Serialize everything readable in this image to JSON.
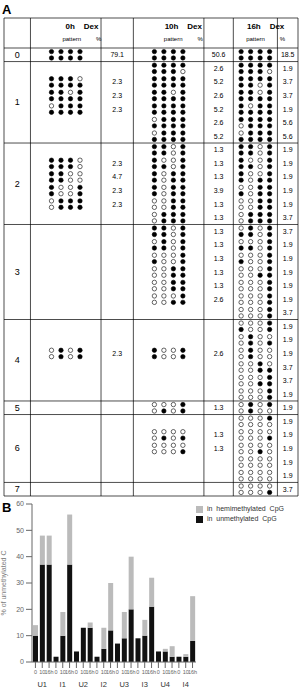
{
  "chart_data": [
    {
      "type": "table",
      "annotations": [
        "A"
      ],
      "columns": [
        {
          "title": "0h    Dex",
          "subtitle": "pattern         %"
        },
        {
          "title": "10h    Dex",
          "subtitle": "pattern         %"
        },
        {
          "title": "16h    Dex",
          "subtitle": "pattern         %"
        }
      ],
      "row_labels": [
        "0",
        "1",
        "2",
        "3",
        "4",
        "5",
        "6",
        "7"
      ],
      "cells": [
        [
          [
            {
              "pattern": [
                "F",
                "F",
                "F",
                "F"
              ],
              "value": 79.1
            }
          ],
          [
            {
              "pattern": [
                "F",
                "F",
                "F",
                "F"
              ],
              "value": 50.6
            }
          ],
          [
            {
              "pattern": [
                "F",
                "F",
                "F",
                "F"
              ],
              "value": 18.5
            }
          ]
        ],
        [
          [
            {
              "pattern": [
                "F",
                "F",
                "F",
                "h"
              ],
              "value": 2.3
            },
            {
              "pattern": [
                "F",
                "F",
                "h",
                "F"
              ],
              "value": 2.3
            },
            {
              "pattern": [
                "h",
                "F",
                "F",
                "F"
              ],
              "value": 2.3
            }
          ],
          [
            {
              "pattern": [
                "F",
                "F",
                "F",
                "H"
              ],
              "value": 2.6
            },
            {
              "pattern": [
                "F",
                "F",
                "F",
                "F"
              ],
              "value": 5.2
            },
            {
              "pattern": [
                "F",
                "F",
                "h",
                "F"
              ],
              "value": 2.6
            },
            {
              "pattern": [
                "F",
                "F",
                "F",
                "F"
              ],
              "value": 5.2
            },
            {
              "pattern": [
                "h",
                "F",
                "F",
                "F"
              ],
              "value": 2.6
            },
            {
              "pattern": [
                "h",
                "F",
                "F",
                "F"
              ],
              "value": 5.2
            }
          ],
          [
            {
              "pattern": [
                "F",
                "F",
                "F",
                "H"
              ],
              "value": 1.9
            },
            {
              "pattern": [
                "F",
                "F",
                "H",
                "F"
              ],
              "value": 3.7
            },
            {
              "pattern": [
                "F",
                "F",
                "h",
                "F"
              ],
              "value": 3.7
            },
            {
              "pattern": [
                "F",
                "h",
                "F",
                "F"
              ],
              "value": 1.9
            },
            {
              "pattern": [
                "H",
                "F",
                "F",
                "F"
              ],
              "value": 5.6
            },
            {
              "pattern": [
                "h",
                "F",
                "F",
                "F"
              ],
              "value": 5.6
            }
          ]
        ],
        [
          [
            {
              "pattern": [
                "F",
                "F",
                "F",
                "U"
              ],
              "value": 2.3
            },
            {
              "pattern": [
                "F",
                "F",
                "U",
                "U"
              ],
              "value": 4.7
            },
            {
              "pattern": [
                "F",
                "U",
                "U",
                "F"
              ],
              "value": 2.3
            },
            {
              "pattern": [
                "U",
                "F",
                "F",
                "F"
              ],
              "value": 2.3
            }
          ],
          [
            {
              "pattern": [
                "F",
                "F",
                "U",
                "F"
              ],
              "value": 1.3
            },
            {
              "pattern": [
                "F",
                "h",
                "U",
                "F"
              ],
              "value": 1.3
            },
            {
              "pattern": [
                "F",
                "U",
                "F",
                "F"
              ],
              "value": 1.3
            },
            {
              "pattern": [
                "F",
                "U",
                "F",
                "F"
              ],
              "value": 3.9
            },
            {
              "pattern": [
                "U",
                "U",
                "F",
                "F"
              ],
              "value": 1.3
            },
            {
              "pattern": [
                "U",
                "F",
                "F",
                "F"
              ],
              "value": 1.3
            }
          ],
          [
            {
              "pattern": [
                "F",
                "F",
                "U",
                "F"
              ],
              "value": 1.9
            },
            {
              "pattern": [
                "F",
                "h",
                "U",
                "F"
              ],
              "value": 1.9
            },
            {
              "pattern": [
                "F",
                "U",
                "h",
                "F"
              ],
              "value": 1.9
            },
            {
              "pattern": [
                "h",
                "U",
                "F",
                "F"
              ],
              "value": 1.9
            },
            {
              "pattern": [
                "U",
                "U",
                "F",
                "F"
              ],
              "value": 1.9
            },
            {
              "pattern": [
                "U",
                "F",
                "F",
                "F"
              ],
              "value": 3.7
            }
          ]
        ],
        [
          [],
          [
            {
              "pattern": [
                "F",
                "F",
                "U",
                "F"
              ],
              "value": 1.3
            },
            {
              "pattern": [
                "h",
                "F",
                "U",
                "F"
              ],
              "value": 1.3
            },
            {
              "pattern": [
                "h",
                "U",
                "U",
                "F"
              ],
              "value": 1.3
            },
            {
              "pattern": [
                "U",
                "U",
                "F",
                "F"
              ],
              "value": 1.3
            },
            {
              "pattern": [
                "U",
                "U",
                "F",
                "F"
              ],
              "value": 1.3
            },
            {
              "pattern": [
                "U",
                "U",
                "h",
                "F"
              ],
              "value": 2.6
            }
          ],
          [
            {
              "pattern": [
                "h",
                "F",
                "U",
                "F"
              ],
              "value": 3.7
            },
            {
              "pattern": [
                "h",
                "h",
                "U",
                "F"
              ],
              "value": 1.9
            },
            {
              "pattern": [
                "h",
                "U",
                "U",
                "F"
              ],
              "value": 1.9
            },
            {
              "pattern": [
                "U",
                "U",
                "h",
                "F"
              ],
              "value": 1.9
            },
            {
              "pattern": [
                "U",
                "U",
                "U",
                "F"
              ],
              "value": 1.9
            },
            {
              "pattern": [
                "U",
                "U",
                "U",
                "F"
              ],
              "value": 1.9
            },
            {
              "pattern": [
                "U",
                "U",
                "U",
                "F"
              ],
              "value": 3.7
            }
          ]
        ],
        [
          [
            {
              "pattern": [
                "U",
                "F",
                "U",
                "F"
              ],
              "value": 2.3
            }
          ],
          [
            {
              "pattern": [
                "F",
                "U",
                "U",
                "F"
              ],
              "value": 2.6
            }
          ],
          [
            {
              "pattern": [
                "h",
                "U",
                "U",
                "F"
              ],
              "value": 1.9
            },
            {
              "pattern": [
                "U",
                "F",
                "U",
                "h"
              ],
              "value": 1.9
            },
            {
              "pattern": [
                "U",
                "F",
                "U",
                "U"
              ],
              "value": 1.9
            },
            {
              "pattern": [
                "U",
                "U",
                "F",
                "h"
              ],
              "value": 3.7
            },
            {
              "pattern": [
                "U",
                "U",
                "h",
                "F"
              ],
              "value": 3.7
            },
            {
              "pattern": [
                "U",
                "U",
                "U",
                "F"
              ],
              "value": 1.9
            }
          ]
        ],
        [
          [],
          [
            {
              "pattern": [
                "U",
                "h",
                "U",
                "F"
              ],
              "value": 1.3
            }
          ],
          [
            {
              "pattern": [
                "U",
                "F",
                "U",
                "H"
              ],
              "value": 1.9
            }
          ]
        ],
        [
          [],
          [
            {
              "pattern": [
                "U",
                "h",
                "U",
                "h"
              ],
              "value": 1.3
            },
            {
              "pattern": [
                "U",
                "U",
                "U",
                "h"
              ],
              "value": 1.3
            }
          ],
          [
            {
              "pattern": [
                "U",
                "U",
                "U",
                "H"
              ],
              "value": 1.9
            },
            {
              "pattern": [
                "U",
                "U",
                "U",
                "h"
              ],
              "value": 1.9
            },
            {
              "pattern": [
                "U",
                "U",
                "h",
                "U"
              ],
              "value": 1.9
            },
            {
              "pattern": [
                "U",
                "U",
                "U",
                "U"
              ],
              "value": 1.9
            },
            {
              "pattern": [
                "U",
                "U",
                "U",
                "U"
              ],
              "value": 1.9
            }
          ]
        ],
        [
          [],
          [],
          [
            {
              "pattern": [
                "U",
                "U",
                "U",
                "h"
              ],
              "value": 3.7
            }
          ]
        ]
      ]
    },
    {
      "type": "bar",
      "stacked": true,
      "legend": "upper right",
      "annotations": [
        "B"
      ],
      "y_label": "% of unmethylated C",
      "ylim": [
        0,
        60
      ],
      "yticks": [
        0,
        10,
        20,
        30,
        40,
        50,
        60
      ],
      "groups": [
        "U1",
        "I1",
        "U2",
        "I2",
        "U3",
        "I3",
        "U4",
        "I4"
      ],
      "categories": [
        "0",
        "10",
        "16h",
        "0",
        "10",
        "16h",
        "0",
        "10",
        "16h",
        "0",
        "10",
        "16h",
        "0",
        "10",
        "16h",
        "0",
        "10",
        "16h",
        "0",
        "10",
        "16h",
        "0",
        "10",
        "16h"
      ],
      "series": [
        {
          "name": "in  unmethylated  CpG",
          "color": "#111111",
          "values": [
            10,
            37,
            37,
            2,
            10,
            37,
            4,
            13,
            13,
            2,
            5,
            12,
            7,
            9,
            20,
            9,
            10,
            21,
            4,
            4,
            2,
            2,
            2,
            8
          ]
        },
        {
          "name": "in  hemimethylated  CpG",
          "color": "#bbbbbb",
          "values": [
            4,
            11,
            11,
            0,
            9,
            19,
            0,
            0,
            2,
            0,
            8,
            18,
            0,
            10,
            20,
            0,
            6,
            11,
            0,
            1,
            4,
            0,
            1,
            17
          ]
        }
      ]
    }
  ]
}
